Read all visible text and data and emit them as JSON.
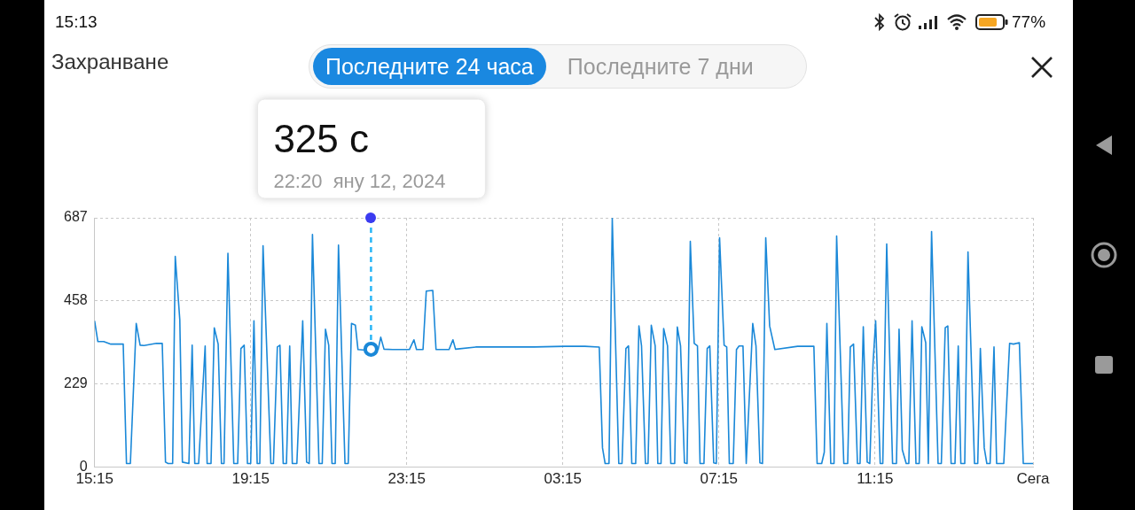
{
  "chart_data": {
    "type": "line",
    "title": "Захранване",
    "annotations": [
      "15:13",
      "77%",
      "Последните 24 часа",
      "Последните 7 дни",
      "325 с",
      "22:20  яну 12, 2024"
    ],
    "x": [
      "2024-01-12T15:15",
      "2024-01-12T15:20",
      "2024-01-12T15:29",
      "2024-01-12T15:40",
      "2024-01-12T15:59",
      "2024-01-12T16:04",
      "2024-01-12T16:10",
      "2024-01-12T16:19",
      "2024-01-12T16:25",
      "2024-01-12T16:31",
      "2024-01-12T16:50",
      "2024-01-12T16:59",
      "2024-01-12T17:04",
      "2024-01-12T17:08",
      "2024-01-12T17:15",
      "2024-01-12T17:19",
      "2024-01-12T17:26",
      "2024-01-12T17:30",
      "2024-01-12T17:40",
      "2024-01-12T17:45",
      "2024-01-12T17:49",
      "2024-01-12T17:55",
      "2024-01-12T18:05",
      "2024-01-12T18:08",
      "2024-01-12T18:14",
      "2024-01-12T18:19",
      "2024-01-12T18:25",
      "2024-01-12T18:30",
      "2024-01-12T18:34",
      "2024-01-12T18:40",
      "2024-01-12T18:49",
      "2024-01-12T18:55",
      "2024-01-12T19:00",
      "2024-01-12T19:05",
      "2024-01-12T19:10",
      "2024-01-12T19:15",
      "2024-01-12T19:20",
      "2024-01-12T19:25",
      "2024-01-12T19:29",
      "2024-01-12T19:34",
      "2024-01-12T19:46",
      "2024-01-12T19:50",
      "2024-01-12T19:56",
      "2024-01-12T20:00",
      "2024-01-12T20:05",
      "2024-01-12T20:10",
      "2024-01-12T20:15",
      "2024-01-12T20:19",
      "2024-01-12T20:26",
      "2024-01-12T20:35",
      "2024-01-12T20:41",
      "2024-01-12T20:45",
      "2024-01-12T20:50",
      "2024-01-12T21:00",
      "2024-01-12T21:05",
      "2024-01-12T21:10",
      "2024-01-12T21:15",
      "2024-01-12T21:20",
      "2024-01-12T21:25",
      "2024-01-12T21:30",
      "2024-01-12T21:40",
      "2024-01-12T21:45",
      "2024-01-12T21:50",
      "2024-01-12T21:56",
      "2024-01-12T22:00",
      "2024-01-12T22:08",
      "2024-01-12T22:20",
      "2024-01-12T22:31",
      "2024-01-12T22:35",
      "2024-01-12T22:40",
      "2024-01-12T22:53",
      "2024-01-12T23:19",
      "2024-01-12T23:26",
      "2024-01-12T23:30",
      "2024-01-12T23:40",
      "2024-01-12T23:45",
      "2024-01-12T23:55",
      "2024-01-13T00:00",
      "2024-01-13T00:20",
      "2024-01-13T00:26",
      "2024-01-13T00:30",
      "2024-01-13T01:01",
      "2024-01-13T02:31",
      "2024-01-13T03:18",
      "2024-01-13T03:49",
      "2024-01-13T04:11",
      "2024-01-13T04:16",
      "2024-01-13T04:20",
      "2024-01-13T04:26",
      "2024-01-13T04:31",
      "2024-01-13T04:41",
      "2024-01-13T04:46",
      "2024-01-13T04:52",
      "2024-01-13T04:56",
      "2024-01-13T05:01",
      "2024-01-13T05:07",
      "2024-01-13T05:12",
      "2024-01-13T05:16",
      "2024-01-13T05:22",
      "2024-01-13T05:26",
      "2024-01-13T05:31",
      "2024-01-13T05:37",
      "2024-01-13T05:41",
      "2024-01-13T05:46",
      "2024-01-13T05:50",
      "2024-01-13T05:56",
      "2024-01-13T06:01",
      "2024-01-13T06:07",
      "2024-01-13T06:11",
      "2024-01-13T06:16",
      "2024-01-13T06:22",
      "2024-01-13T06:26",
      "2024-01-13T06:31",
      "2024-01-13T06:37",
      "2024-01-13T06:42",
      "2024-01-13T06:46",
      "2024-01-13T06:52",
      "2024-01-13T06:57",
      "2024-01-13T07:01",
      "2024-01-13T07:07",
      "2024-01-13T07:11",
      "2024-01-13T07:16",
      "2024-01-13T07:23",
      "2024-01-13T07:27",
      "2024-01-13T07:31",
      "2024-01-13T07:37",
      "2024-01-13T07:42",
      "2024-01-13T07:46",
      "2024-01-13T07:52",
      "2024-01-13T07:57",
      "2024-01-13T08:07",
      "2024-01-13T08:12",
      "2024-01-13T08:18",
      "2024-01-13T08:22",
      "2024-01-13T08:27",
      "2024-01-13T08:33",
      "2024-01-13T08:41",
      "2024-01-13T09:16",
      "2024-01-13T09:41",
      "2024-01-13T09:46",
      "2024-01-13T09:53",
      "2024-01-13T09:57",
      "2024-01-13T10:01",
      "2024-01-13T10:07",
      "2024-01-13T10:12",
      "2024-01-13T10:16",
      "2024-01-13T10:27",
      "2024-01-13T10:33",
      "2024-01-13T10:37",
      "2024-01-13T10:42",
      "2024-01-13T10:48",
      "2024-01-13T10:52",
      "2024-01-13T10:57",
      "2024-01-13T11:03",
      "2024-01-13T11:07",
      "2024-01-13T11:12",
      "2024-01-13T11:16",
      "2024-01-13T11:23",
      "2024-01-13T11:27",
      "2024-01-13T11:33",
      "2024-01-13T11:42",
      "2024-01-13T11:48",
      "2024-01-13T11:52",
      "2024-01-13T11:57",
      "2024-01-13T12:03",
      "2024-01-13T12:07",
      "2024-01-13T12:12",
      "2024-01-13T12:18",
      "2024-01-13T12:23",
      "2024-01-13T12:27",
      "2024-01-13T12:33",
      "2024-01-13T12:37",
      "2024-01-13T12:42",
      "2024-01-13T12:52",
      "2024-01-13T12:57",
      "2024-01-13T13:03",
      "2024-01-13T13:07",
      "2024-01-13T13:12",
      "2024-01-13T13:18",
      "2024-01-13T13:23",
      "2024-01-13T13:27",
      "2024-01-13T13:33",
      "2024-01-13T13:38",
      "2024-01-13T13:48",
      "2024-01-13T13:53",
      "2024-01-13T13:57",
      "2024-01-13T14:03",
      "2024-01-13T14:07",
      "2024-01-13T14:12",
      "2024-01-13T14:18",
      "2024-01-13T14:22",
      "2024-01-13T14:33",
      "2024-01-13T14:42",
      "2024-01-13T14:48",
      "2024-01-13T14:57",
      "2024-01-13T15:03",
      "2024-01-13T15:18"
    ],
    "series": [
      {
        "color": "#1a88d8",
        "values": [
          403,
          346,
          346,
          339,
          339,
          10,
          10,
          396,
          336,
          335,
          341,
          341,
          14,
          10,
          10,
          581,
          406,
          14,
          10,
          336,
          10,
          10,
          334,
          10,
          10,
          384,
          339,
          10,
          10,
          589,
          10,
          10,
          327,
          336,
          10,
          10,
          403,
          10,
          10,
          610,
          10,
          10,
          331,
          336,
          10,
          10,
          334,
          10,
          10,
          403,
          14,
          10,
          641,
          10,
          10,
          380,
          336,
          10,
          10,
          612,
          10,
          10,
          396,
          391,
          324,
          323,
          325,
          324,
          358,
          325,
          324,
          324,
          351,
          324,
          324,
          485,
          487,
          324,
          324,
          351,
          325,
          331,
          331,
          333,
          333,
          331,
          53,
          10,
          10,
          685,
          10,
          10,
          327,
          334,
          10,
          10,
          389,
          334,
          10,
          10,
          391,
          334,
          10,
          10,
          382,
          334,
          10,
          10,
          386,
          334,
          12,
          10,
          622,
          341,
          334,
          10,
          10,
          327,
          334,
          12,
          10,
          632,
          336,
          331,
          10,
          10,
          324,
          334,
          334,
          10,
          396,
          334,
          12,
          10,
          632,
          389,
          324,
          333,
          333,
          10,
          10,
          41,
          396,
          10,
          10,
          637,
          10,
          10,
          331,
          339,
          10,
          10,
          387,
          14,
          10,
          286,
          403,
          10,
          10,
          615,
          10,
          10,
          380,
          48,
          10,
          10,
          403,
          10,
          10,
          387,
          343,
          10,
          649,
          10,
          10,
          384,
          389,
          10,
          10,
          334,
          10,
          10,
          593,
          10,
          10,
          327,
          53,
          10,
          10,
          331,
          10,
          10,
          341,
          339,
          343,
          10,
          10
        ]
      }
    ],
    "ref_lines": [
      {
        "axis": "x",
        "value": "2024-01-12T22:20",
        "color": "#29b6f6",
        "line_style": "dashed"
      }
    ],
    "xlim": [
      "2024-01-12T15:15",
      "2024-01-13T15:18"
    ],
    "xticks": [
      {
        "value": "2024-01-12T15:15",
        "label": "15:15"
      },
      {
        "value": "2024-01-12T19:15",
        "label": "19:15"
      },
      {
        "value": "2024-01-12T23:15",
        "label": "23:15"
      },
      {
        "value": "2024-01-13T03:15",
        "label": "03:15"
      },
      {
        "value": "2024-01-13T07:15",
        "label": "07:15"
      },
      {
        "value": "2024-01-13T11:15",
        "label": "11:15"
      },
      {
        "value": "2024-01-13T15:18",
        "label": "Сега"
      }
    ],
    "ylim": [
      0,
      687
    ],
    "yticks": [
      0,
      229,
      458,
      687
    ],
    "grid": true,
    "legend": false,
    "marker": "none"
  }
}
